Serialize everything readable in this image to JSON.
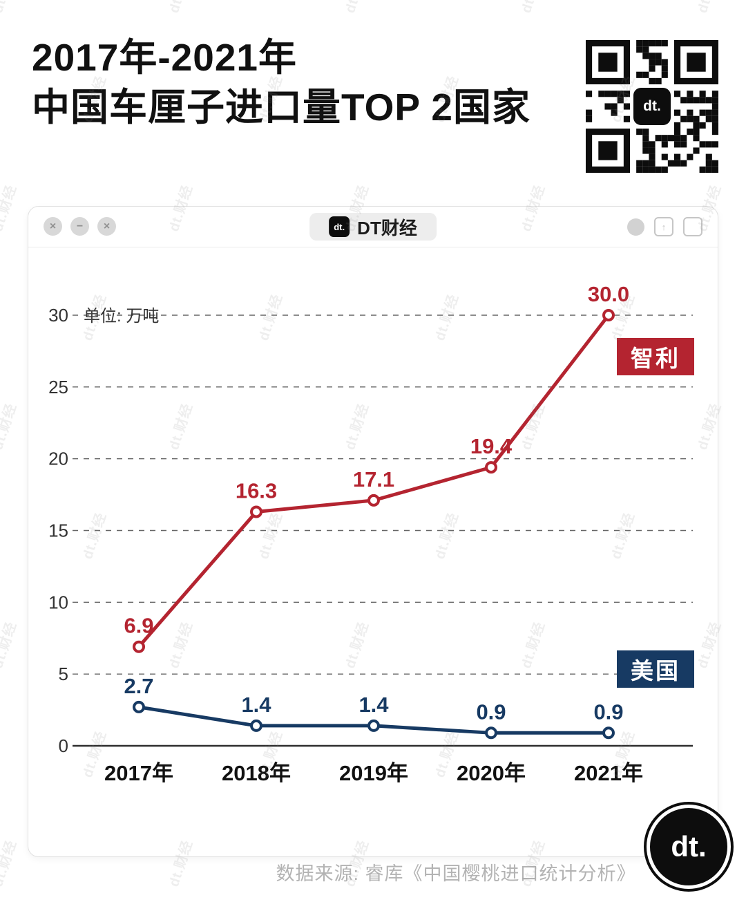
{
  "brand": {
    "logo_text": "dt."
  },
  "page": {
    "title_line1": "2017年-2021年",
    "title_line2": "中国车厘子进口量TOP 2国家",
    "watermark": "dt.财经",
    "source": "数据来源: 睿库《中国樱桃进口统计分析》"
  },
  "window": {
    "title": "DT财经",
    "close_glyph": "×",
    "minimize_glyph": "−",
    "extra_glyph": "×",
    "share_glyph": "↑"
  },
  "chart_data": {
    "type": "line",
    "title": "2017年-2021年中国车厘子进口量TOP 2国家",
    "unit_label": "单位: 万吨",
    "categories": [
      "2017年",
      "2018年",
      "2019年",
      "2020年",
      "2021年"
    ],
    "series": [
      {
        "name": "智利",
        "color": "#b42430",
        "values": [
          6.9,
          16.3,
          17.1,
          19.4,
          30.0
        ],
        "value_labels": [
          "6.9",
          "16.3",
          "17.1",
          "19.4",
          "30.0"
        ]
      },
      {
        "name": "美国",
        "color": "#173a63",
        "values": [
          2.7,
          1.4,
          1.4,
          0.9,
          0.9
        ],
        "value_labels": [
          "2.7",
          "1.4",
          "1.4",
          "0.9",
          "0.9"
        ]
      }
    ],
    "ylim": [
      0,
      30
    ],
    "yticks": [
      0,
      5,
      10,
      15,
      20,
      25,
      30
    ],
    "grid": "horizontal-dashed",
    "legend_position": "right-inline-badges"
  }
}
